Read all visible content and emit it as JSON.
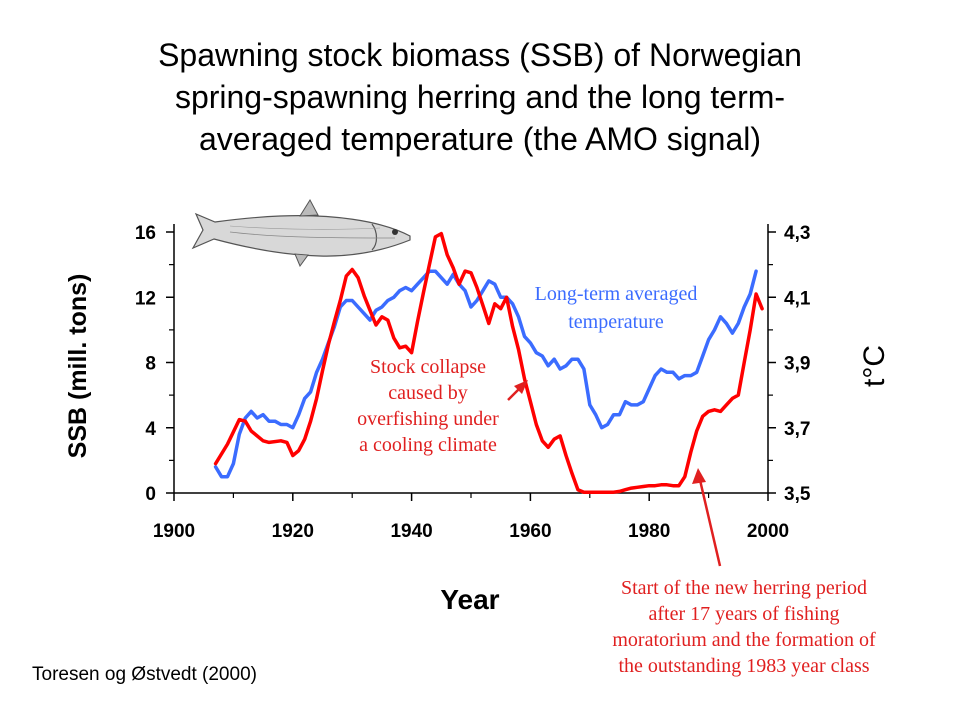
{
  "title_lines": [
    "Spawning stock biomass (SSB) of Norwegian",
    "spring-spawning herring and the long term-",
    "averaged temperature (the AMO signal)"
  ],
  "source": "Toresen og Østvedt (2000)",
  "colors": {
    "ssb": "#ff0000",
    "temperature": "#3b6cff",
    "annotation": "#e02020",
    "axis": "#000000"
  },
  "icons": {
    "fish": "herring-illustration"
  },
  "chart_data": {
    "type": "line",
    "xlabel": "Year",
    "ylabel_left": "SSB (mill. tons)",
    "ylabel_right": "t°C",
    "xlim": [
      1900,
      2000
    ],
    "ylim_left": [
      0,
      16
    ],
    "ylim_right": [
      3.5,
      4.3
    ],
    "x_ticks": [
      "1900",
      "1920",
      "1940",
      "1960",
      "1980",
      "2000"
    ],
    "x_tick_values": [
      1900,
      1920,
      1940,
      1960,
      1980,
      2000
    ],
    "y_left_ticks": [
      "0",
      "4",
      "8",
      "12",
      "16"
    ],
    "y_left_tick_values": [
      0,
      4,
      8,
      12,
      16
    ],
    "y_right_ticks": [
      "3,5",
      "3,7",
      "3,9",
      "4,1",
      "4,3"
    ],
    "y_right_tick_values": [
      3.5,
      3.7,
      3.9,
      4.1,
      4.3
    ],
    "grid": false,
    "series": [
      {
        "name": "SSB",
        "axis": "left",
        "x": [
          1907,
          1909,
          1911,
          1912,
          1913,
          1915,
          1916,
          1918,
          1919,
          1920,
          1921,
          1922,
          1923,
          1924,
          1925,
          1926,
          1927,
          1928,
          1929,
          1930,
          1931,
          1932,
          1933,
          1934,
          1935,
          1936,
          1937,
          1938,
          1939,
          1940,
          1941,
          1942,
          1943,
          1944,
          1945,
          1946,
          1947,
          1948,
          1949,
          1950,
          1951,
          1952,
          1953,
          1954,
          1955,
          1956,
          1957,
          1958,
          1959,
          1960,
          1961,
          1962,
          1963,
          1964,
          1965,
          1966,
          1967,
          1968,
          1969,
          1970,
          1971,
          1972,
          1973,
          1974,
          1975,
          1976,
          1977,
          1978,
          1979,
          1980,
          1981,
          1982,
          1983,
          1984,
          1985,
          1986,
          1987,
          1988,
          1989,
          1990,
          1991,
          1992,
          1993,
          1994,
          1995,
          1996,
          1997,
          1998,
          1999
        ],
        "values": [
          1.8,
          3.0,
          4.5,
          4.4,
          3.8,
          3.2,
          3.1,
          3.2,
          3.1,
          2.3,
          2.6,
          3.3,
          4.4,
          5.8,
          7.5,
          9.1,
          10.5,
          11.8,
          13.3,
          13.7,
          13.2,
          12.1,
          11.2,
          10.3,
          10.8,
          10.6,
          9.5,
          8.9,
          9.0,
          8.6,
          10.5,
          12.3,
          14.0,
          15.7,
          15.9,
          14.6,
          13.8,
          12.8,
          13.6,
          13.5,
          12.6,
          11.5,
          10.4,
          11.6,
          11.3,
          12.0,
          10.2,
          8.8,
          7.0,
          5.6,
          4.2,
          3.2,
          2.8,
          3.3,
          3.5,
          2.3,
          1.2,
          0.2,
          0.05,
          0.05,
          0.05,
          0.05,
          0.05,
          0.05,
          0.1,
          0.2,
          0.3,
          0.35,
          0.4,
          0.45,
          0.45,
          0.5,
          0.5,
          0.45,
          0.45,
          1.0,
          2.5,
          3.8,
          4.7,
          5.0,
          5.1,
          5.0,
          5.4,
          5.8,
          6.0,
          8.0,
          10.0,
          12.2,
          11.3
        ]
      },
      {
        "name": "Long-term averaged temperature",
        "axis": "right",
        "x": [
          1907,
          1908,
          1909,
          1910,
          1911,
          1912,
          1913,
          1914,
          1915,
          1916,
          1917,
          1918,
          1919,
          1920,
          1921,
          1922,
          1923,
          1924,
          1925,
          1926,
          1927,
          1928,
          1929,
          1930,
          1931,
          1932,
          1933,
          1934,
          1935,
          1936,
          1937,
          1938,
          1939,
          1940,
          1941,
          1942,
          1943,
          1944,
          1945,
          1946,
          1947,
          1948,
          1949,
          1950,
          1951,
          1952,
          1953,
          1954,
          1955,
          1956,
          1957,
          1958,
          1959,
          1960,
          1961,
          1962,
          1963,
          1964,
          1965,
          1966,
          1967,
          1968,
          1969,
          1970,
          1971,
          1972,
          1973,
          1974,
          1975,
          1976,
          1977,
          1978,
          1979,
          1980,
          1981,
          1982,
          1983,
          1984,
          1985,
          1986,
          1987,
          1988,
          1989,
          1990,
          1991,
          1992,
          1993,
          1994,
          1995,
          1996,
          1997,
          1998
        ],
        "values": [
          3.58,
          3.55,
          3.55,
          3.59,
          3.68,
          3.73,
          3.75,
          3.73,
          3.74,
          3.72,
          3.72,
          3.71,
          3.71,
          3.7,
          3.74,
          3.79,
          3.81,
          3.87,
          3.91,
          3.96,
          4.01,
          4.07,
          4.09,
          4.09,
          4.07,
          4.05,
          4.03,
          4.06,
          4.07,
          4.09,
          4.1,
          4.12,
          4.13,
          4.12,
          4.14,
          4.16,
          4.18,
          4.18,
          4.16,
          4.14,
          4.17,
          4.14,
          4.12,
          4.07,
          4.09,
          4.12,
          4.15,
          4.14,
          4.1,
          4.1,
          4.08,
          4.04,
          3.98,
          3.96,
          3.93,
          3.92,
          3.89,
          3.91,
          3.88,
          3.89,
          3.91,
          3.91,
          3.88,
          3.77,
          3.74,
          3.7,
          3.71,
          3.74,
          3.74,
          3.78,
          3.77,
          3.77,
          3.78,
          3.82,
          3.86,
          3.88,
          3.87,
          3.87,
          3.85,
          3.86,
          3.86,
          3.87,
          3.92,
          3.97,
          4.0,
          4.04,
          4.02,
          3.99,
          4.02,
          4.07,
          4.11,
          4.18
        ]
      }
    ],
    "annotations": [
      {
        "text_lines": [
          "Long-term averaged",
          "temperature"
        ],
        "color": "#3b6cff"
      },
      {
        "text_lines": [
          "Stock collapse",
          "caused by",
          "overfishing under",
          "a cooling climate"
        ],
        "color": "#e02020",
        "arrow_to": [
          1958,
          6.7
        ]
      },
      {
        "text_lines": [
          "Start of the new herring period",
          "after 17 years of fishing",
          "moratorium and the formation of",
          "the outstanding 1983 year class"
        ],
        "color": "#e02020",
        "arrow_to": [
          1987,
          1.5
        ]
      }
    ]
  }
}
